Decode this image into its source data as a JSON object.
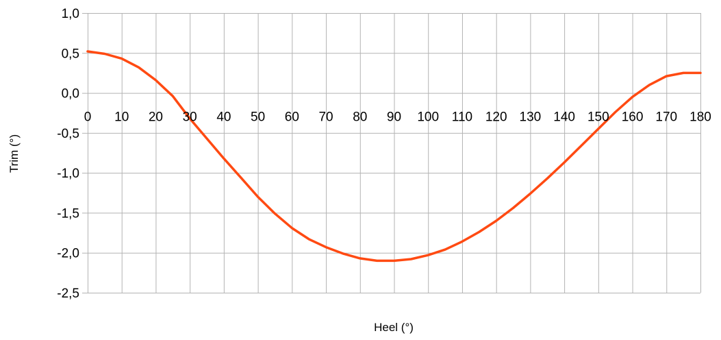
{
  "chart_data": {
    "type": "line",
    "title": "",
    "xlabel": "Heel (°)",
    "ylabel": "Trim (°)",
    "xlim": [
      0,
      180
    ],
    "ylim": [
      -2.5,
      1.0
    ],
    "x_ticks": [
      0,
      10,
      20,
      30,
      40,
      50,
      60,
      70,
      80,
      90,
      100,
      110,
      120,
      130,
      140,
      150,
      160,
      170,
      180
    ],
    "y_ticks": [
      1.0,
      0.5,
      0.0,
      -0.5,
      -1.0,
      -1.5,
      -2.0,
      -2.5
    ],
    "y_tick_labels": [
      "1,0",
      "0,5",
      "0,0",
      "-0,5",
      "-1,0",
      "-1,5",
      "-2,0",
      "-2,5"
    ],
    "grid": true,
    "legend": "none",
    "series": [
      {
        "color": "#ff4a12",
        "x": [
          0,
          5,
          10,
          15,
          20,
          25,
          30,
          35,
          40,
          45,
          50,
          55,
          60,
          65,
          70,
          75,
          80,
          85,
          90,
          95,
          100,
          105,
          110,
          115,
          120,
          125,
          130,
          135,
          140,
          145,
          150,
          155,
          160,
          165,
          170,
          175,
          180
        ],
        "y": [
          0.52,
          0.49,
          0.43,
          0.32,
          0.16,
          -0.04,
          -0.32,
          -0.57,
          -0.82,
          -1.06,
          -1.3,
          -1.51,
          -1.69,
          -1.83,
          -1.93,
          -2.01,
          -2.07,
          -2.1,
          -2.1,
          -2.08,
          -2.03,
          -1.96,
          -1.86,
          -1.74,
          -1.6,
          -1.44,
          -1.26,
          -1.07,
          -0.87,
          -0.66,
          -0.45,
          -0.24,
          -0.05,
          0.1,
          0.21,
          0.25,
          0.25
        ]
      }
    ]
  }
}
